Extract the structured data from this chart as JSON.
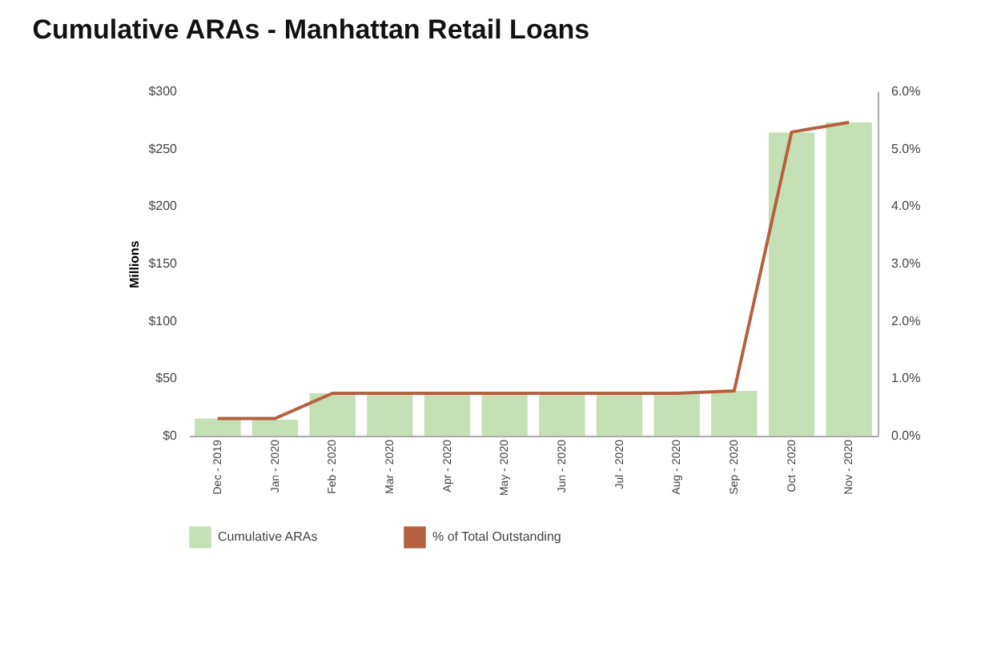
{
  "chart_data": {
    "type": "bar",
    "title": "Cumulative ARAs - Manhattan Retail Loans",
    "ylabel": "Millions",
    "categories": [
      "Dec - 2019",
      "Jan - 2020",
      "Feb - 2020",
      "Mar - 2020",
      "Apr - 2020",
      "May - 2020",
      "Jun - 2020",
      "Jul - 2020",
      "Aug - 2020",
      "Sep - 2020",
      "Oct - 2020",
      "Nov - 2020"
    ],
    "series": [
      {
        "name": "Cumulative ARAs",
        "color": "#c5e0b4",
        "values": [
          15,
          14,
          37,
          37,
          37,
          37,
          37,
          37,
          37,
          39,
          264,
          273
        ]
      },
      {
        "name": "% of Total Outstanding",
        "type": "line",
        "axis": "y2",
        "color": "#b5603f",
        "values": [
          0.3,
          0.3,
          0.74,
          0.74,
          0.74,
          0.74,
          0.74,
          0.74,
          0.74,
          0.78,
          5.29,
          5.46
        ]
      }
    ],
    "ylim": [
      0,
      300
    ],
    "yticks": [
      {
        "value": 0,
        "label": "$0"
      },
      {
        "value": 50,
        "label": "$50"
      },
      {
        "value": 100,
        "label": "$100"
      },
      {
        "value": 150,
        "label": "$150"
      },
      {
        "value": 200,
        "label": "$200"
      },
      {
        "value": 250,
        "label": "$250"
      },
      {
        "value": 300,
        "label": "$300"
      }
    ],
    "y2lim": [
      0,
      6
    ],
    "y2ticks": [
      {
        "value": 0,
        "label": "0.0%"
      },
      {
        "value": 1,
        "label": "1.0%"
      },
      {
        "value": 2,
        "label": "2.0%"
      },
      {
        "value": 3,
        "label": "3.0%"
      },
      {
        "value": 4,
        "label": "4.0%"
      },
      {
        "value": 5,
        "label": "5.0%"
      },
      {
        "value": 6,
        "label": "6.0%"
      }
    ],
    "grid": false,
    "legend": "bottom",
    "line_style": "solid",
    "marker": "none"
  }
}
